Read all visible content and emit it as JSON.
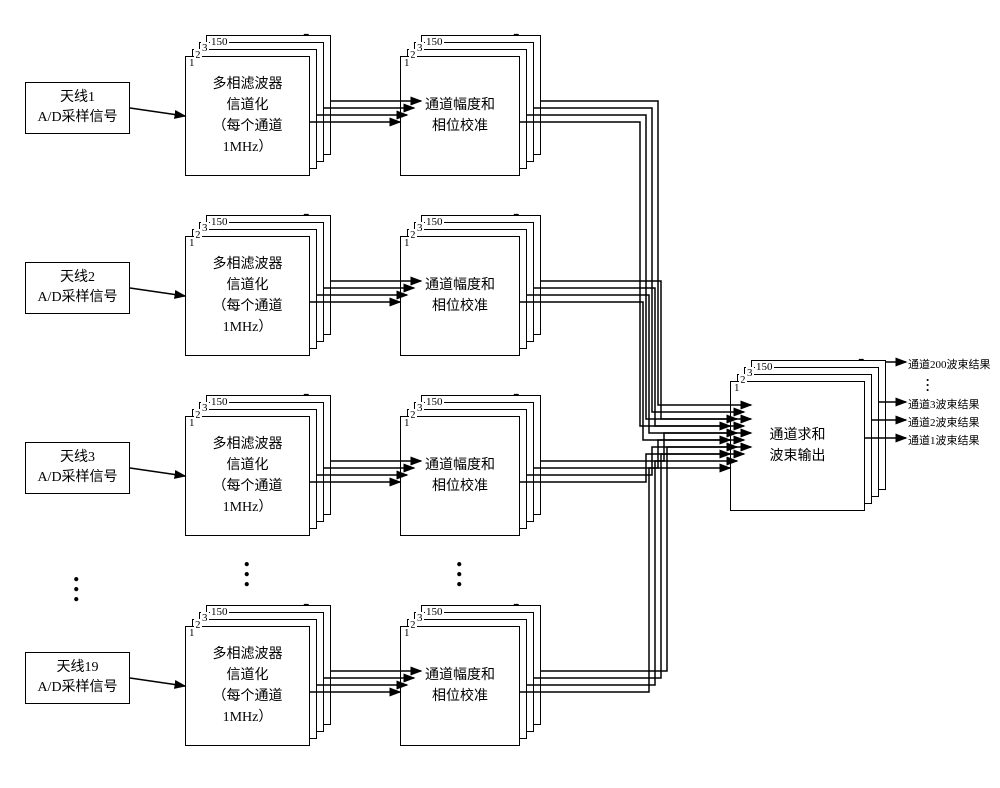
{
  "inputs": [
    {
      "line1": "天线1",
      "line2": "A/D采样信号"
    },
    {
      "line1": "天线2",
      "line2": "A/D采样信号"
    },
    {
      "line1": "天线3",
      "line2": "A/D采样信号"
    },
    {
      "line1": "天线19",
      "line2": "A/D采样信号"
    }
  ],
  "stageA": {
    "line1": "多相滤波器",
    "line2": "信道化",
    "line3": "（每个通道",
    "line4": "1MHz）"
  },
  "stageB": {
    "line1": "通道幅度和",
    "line2": "相位校准"
  },
  "stageC": {
    "line1": "通道求和",
    "line2": "波束输出"
  },
  "stack": {
    "levels": [
      "1",
      "2",
      "3",
      "150"
    ],
    "dots": "..."
  },
  "outputs": [
    "通道200波束结果",
    "通道3波束结果",
    "通道2波束结果",
    "通道1波束结果"
  ],
  "layout": {
    "rowsTop": [
      35,
      215,
      395,
      605
    ],
    "inputTop": [
      82,
      262,
      442,
      652
    ],
    "inputLeft": 25,
    "stageALeft": 185,
    "stageBLeft": 400,
    "stageCLeft": 730,
    "stageCTop": 360,
    "mainW": 125,
    "mainH": 120,
    "calW": 120,
    "calH": 120,
    "stackOffset": 7,
    "outW": 135,
    "outH": 130
  },
  "arrows": {
    "color": "#000000",
    "strokeWidth": 1.5
  }
}
